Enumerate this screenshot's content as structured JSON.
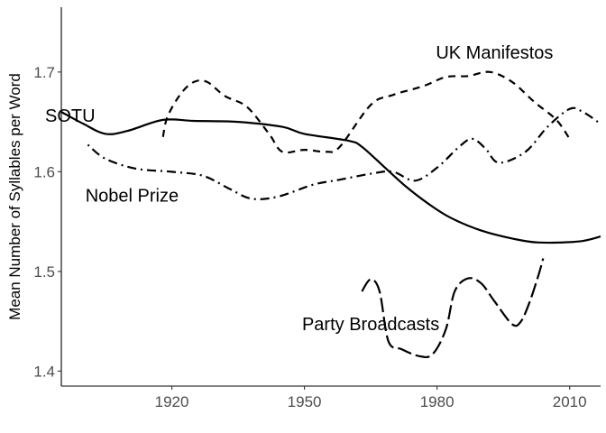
{
  "chart_data": {
    "type": "line",
    "title": "",
    "xlabel": "",
    "ylabel": "Mean Number of Syllables per Word",
    "xlim": [
      1895,
      2017
    ],
    "ylim": [
      1.385,
      1.765
    ],
    "x_ticks": [
      1920,
      1950,
      1980,
      2010
    ],
    "y_ticks": [
      1.4,
      1.5,
      1.6,
      1.7
    ],
    "x_tick_labels": [
      "1920",
      "1950",
      "1980",
      "2010"
    ],
    "y_tick_labels": [
      "1.4",
      "1.5",
      "1.6",
      "1.7"
    ],
    "grid": false,
    "legend": "none",
    "series": [
      {
        "name": "SOTU",
        "linetype": "solid",
        "label_at": [
          1897,
          1.655
        ],
        "points": [
          [
            1895,
            1.66
          ],
          [
            1900,
            1.648
          ],
          [
            1905,
            1.638
          ],
          [
            1910,
            1.641
          ],
          [
            1918,
            1.652
          ],
          [
            1925,
            1.651
          ],
          [
            1935,
            1.65
          ],
          [
            1945,
            1.645
          ],
          [
            1950,
            1.638
          ],
          [
            1960,
            1.631
          ],
          [
            1963,
            1.625
          ],
          [
            1968,
            1.605
          ],
          [
            1973,
            1.585
          ],
          [
            1978,
            1.568
          ],
          [
            1983,
            1.554
          ],
          [
            1990,
            1.541
          ],
          [
            1997,
            1.533
          ],
          [
            2003,
            1.529
          ],
          [
            2012,
            1.53
          ],
          [
            2017,
            1.535
          ]
        ]
      },
      {
        "name": "UK Manifestos",
        "linetype": "dashed",
        "label_at": [
          1993,
          1.718
        ],
        "points": [
          [
            1918,
            1.635
          ],
          [
            1919,
            1.655
          ],
          [
            1922,
            1.678
          ],
          [
            1925,
            1.69
          ],
          [
            1928,
            1.69
          ],
          [
            1932,
            1.676
          ],
          [
            1937,
            1.665
          ],
          [
            1942,
            1.638
          ],
          [
            1945,
            1.62
          ],
          [
            1950,
            1.622
          ],
          [
            1955,
            1.62
          ],
          [
            1958,
            1.625
          ],
          [
            1965,
            1.667
          ],
          [
            1970,
            1.677
          ],
          [
            1977,
            1.686
          ],
          [
            1982,
            1.695
          ],
          [
            1987,
            1.696
          ],
          [
            1992,
            1.7
          ],
          [
            1997,
            1.69
          ],
          [
            2002,
            1.67
          ],
          [
            2007,
            1.652
          ],
          [
            2010,
            1.633
          ]
        ]
      },
      {
        "name": "Nobel Prize",
        "linetype": "dotdash",
        "label_at": [
          1911,
          1.575
        ],
        "points": [
          [
            1901,
            1.627
          ],
          [
            1905,
            1.613
          ],
          [
            1912,
            1.603
          ],
          [
            1920,
            1.6
          ],
          [
            1927,
            1.596
          ],
          [
            1933,
            1.583
          ],
          [
            1938,
            1.573
          ],
          [
            1944,
            1.575
          ],
          [
            1952,
            1.587
          ],
          [
            1958,
            1.592
          ],
          [
            1965,
            1.598
          ],
          [
            1970,
            1.6
          ],
          [
            1975,
            1.591
          ],
          [
            1980,
            1.604
          ],
          [
            1985,
            1.625
          ],
          [
            1988,
            1.633
          ],
          [
            1991,
            1.623
          ],
          [
            1994,
            1.609
          ],
          [
            2000,
            1.62
          ],
          [
            2005,
            1.645
          ],
          [
            2010,
            1.663
          ],
          [
            2013,
            1.66
          ],
          [
            2017,
            1.648
          ]
        ]
      },
      {
        "name": "Party Broadcasts",
        "linetype": "longdash",
        "label_at": [
          1965,
          1.446
        ],
        "points": [
          [
            1963,
            1.48
          ],
          [
            1965,
            1.492
          ],
          [
            1967,
            1.48
          ],
          [
            1969,
            1.43
          ],
          [
            1972,
            1.422
          ],
          [
            1976,
            1.415
          ],
          [
            1979,
            1.417
          ],
          [
            1982,
            1.442
          ],
          [
            1984,
            1.48
          ],
          [
            1987,
            1.493
          ],
          [
            1990,
            1.488
          ],
          [
            1993,
            1.47
          ],
          [
            1997,
            1.447
          ],
          [
            1999,
            1.45
          ],
          [
            2001,
            1.47
          ],
          [
            2003,
            1.497
          ],
          [
            2004,
            1.513
          ]
        ]
      }
    ]
  }
}
